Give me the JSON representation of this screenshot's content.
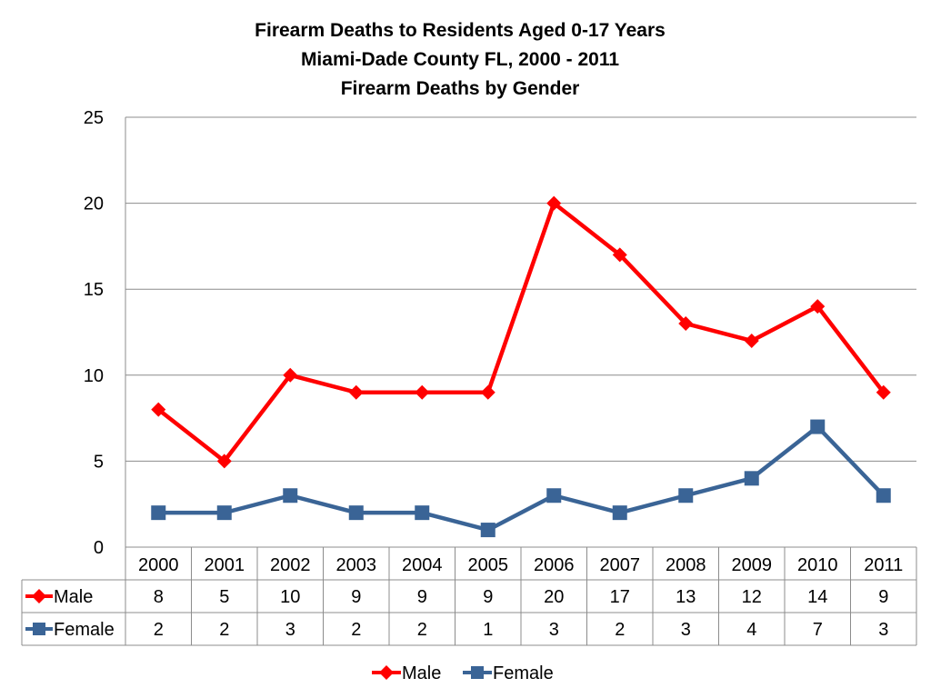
{
  "chart_data": {
    "type": "line",
    "title": [
      "Firearm Deaths to Residents Aged 0-17 Years",
      "Miami-Dade County FL, 2000 - 2011",
      "Firearm Deaths by Gender"
    ],
    "categories": [
      "2000",
      "2001",
      "2002",
      "2003",
      "2004",
      "2005",
      "2006",
      "2007",
      "2008",
      "2009",
      "2010",
      "2011"
    ],
    "series": [
      {
        "name": "Male",
        "values": [
          8,
          5,
          10,
          9,
          9,
          9,
          20,
          17,
          13,
          12,
          14,
          9
        ],
        "color": "#ff0000",
        "marker": "diamond"
      },
      {
        "name": "Female",
        "values": [
          2,
          2,
          3,
          2,
          2,
          1,
          3,
          2,
          3,
          4,
          7,
          3
        ],
        "color": "#3a6496",
        "marker": "square"
      }
    ],
    "ylim": [
      0,
      25
    ],
    "yticks": [
      0,
      5,
      10,
      15,
      20,
      25
    ],
    "grid": true,
    "data_table": true,
    "legend": "bottom"
  }
}
